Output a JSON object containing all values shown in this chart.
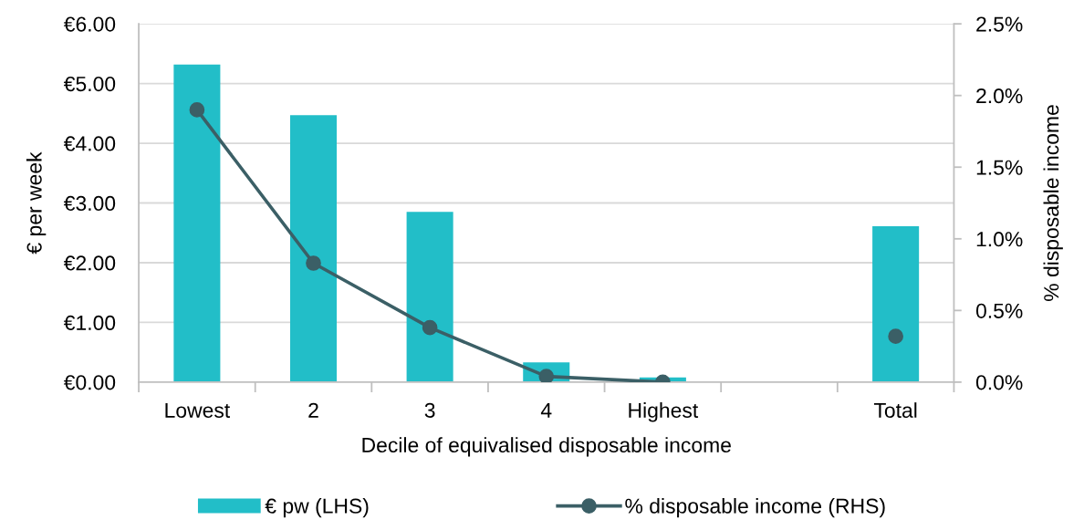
{
  "chart_data": {
    "type": "bar",
    "xlabel": "Decile of equivalised disposable income",
    "ylabel": "€ per week",
    "y2label": "% disposable income",
    "categories": [
      "Lowest",
      "2",
      "3",
      "4",
      "Highest",
      null,
      "Total"
    ],
    "series": [
      {
        "name": "€ pw (LHS)",
        "color": "#22bec8",
        "values": [
          5.32,
          4.47,
          2.85,
          0.33,
          0.08,
          null,
          2.61
        ]
      },
      {
        "name": "% disposable income (RHS)",
        "type": "line",
        "axis": "y2",
        "color": "#3b5f66",
        "marker": "circle",
        "line_style": "solid",
        "values": [
          1.9,
          0.83,
          0.38,
          0.04,
          0.0,
          null,
          0.32
        ]
      }
    ],
    "ylim": [
      0,
      6
    ],
    "yticks": [
      {
        "value": 0,
        "label": "€0.00"
      },
      {
        "value": 1,
        "label": "€1.00"
      },
      {
        "value": 2,
        "label": "€2.00"
      },
      {
        "value": 3,
        "label": "€3.00"
      },
      {
        "value": 4,
        "label": "€4.00"
      },
      {
        "value": 5,
        "label": "€5.00"
      },
      {
        "value": 6,
        "label": "€6.00"
      }
    ],
    "y2lim": [
      0,
      2.5
    ],
    "y2ticks": [
      {
        "value": 0,
        "label": "0.0%"
      },
      {
        "value": 0.5,
        "label": "0.5%"
      },
      {
        "value": 1.0,
        "label": "1.0%"
      },
      {
        "value": 1.5,
        "label": "1.5%"
      },
      {
        "value": 2.0,
        "label": "2.0%"
      },
      {
        "value": 2.5,
        "label": "2.5%"
      }
    ],
    "grid": "y",
    "legend": "bottom"
  }
}
